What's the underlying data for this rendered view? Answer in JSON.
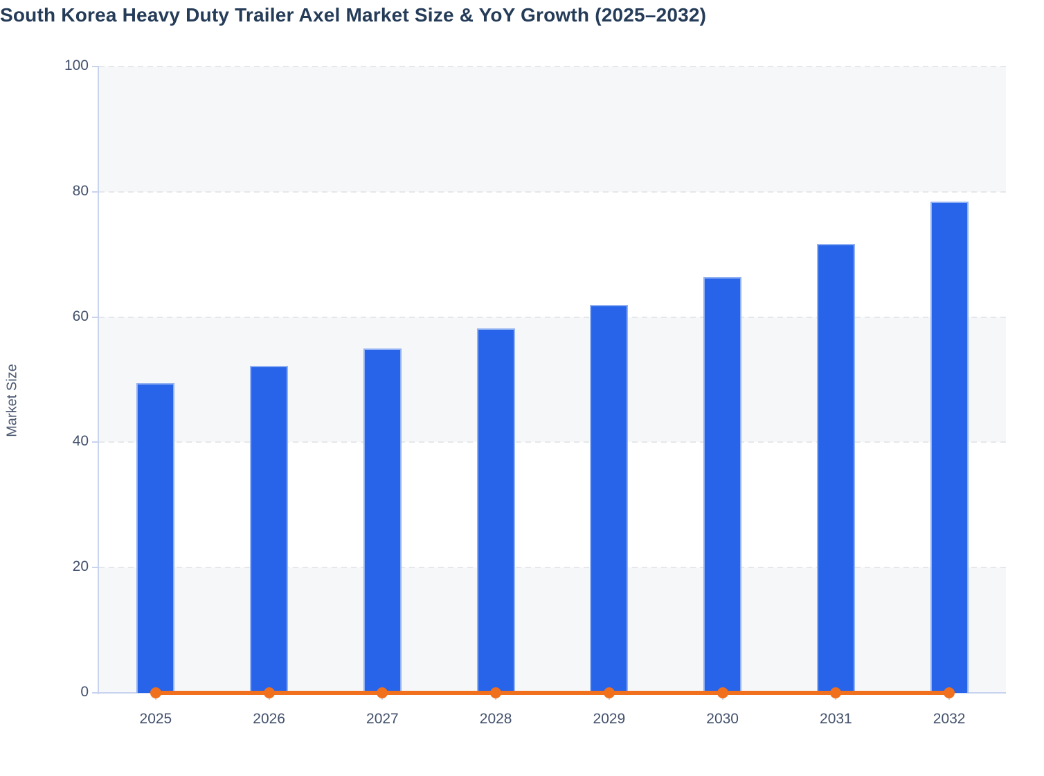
{
  "title": "South Korea Heavy Duty Trailer Axel Market Size & YoY Growth (2025–2032)",
  "chart_data": {
    "type": "bar",
    "title": "South Korea Heavy Duty Trailer Axel Market Size & YoY Growth (2025–2032)",
    "categories": [
      "2025",
      "2026",
      "2027",
      "2028",
      "2029",
      "2030",
      "2031",
      "2032"
    ],
    "series": [
      {
        "name": "Market Size",
        "type": "bar",
        "color": "#2764e9",
        "values": [
          49.5,
          52.2,
          55.0,
          58.2,
          62.0,
          66.4,
          71.7,
          78.4
        ]
      },
      {
        "name": "YoY Growth",
        "type": "line",
        "color": "#f0701d",
        "values": [
          0,
          0,
          0,
          0,
          0,
          0,
          0,
          0
        ]
      }
    ],
    "xlabel": "",
    "ylabel": "Market Size",
    "ylim": [
      0,
      100
    ],
    "yticks": [
      0,
      20,
      40,
      60,
      80,
      100
    ],
    "grid": "horizontal-dashed",
    "legend_position": "none",
    "background_bands": "alternating gray stripes between even tick pairs"
  },
  "colors": {
    "bar": "#2764e9",
    "bar_border": "rgba(165,190,245,0.85)",
    "line": "#f0701d",
    "axis": "#c7d3ef",
    "grid": "#e5e7ea",
    "band": "#f6f7f9",
    "tick_text": "#42506b",
    "title_text": "#253c58"
  }
}
